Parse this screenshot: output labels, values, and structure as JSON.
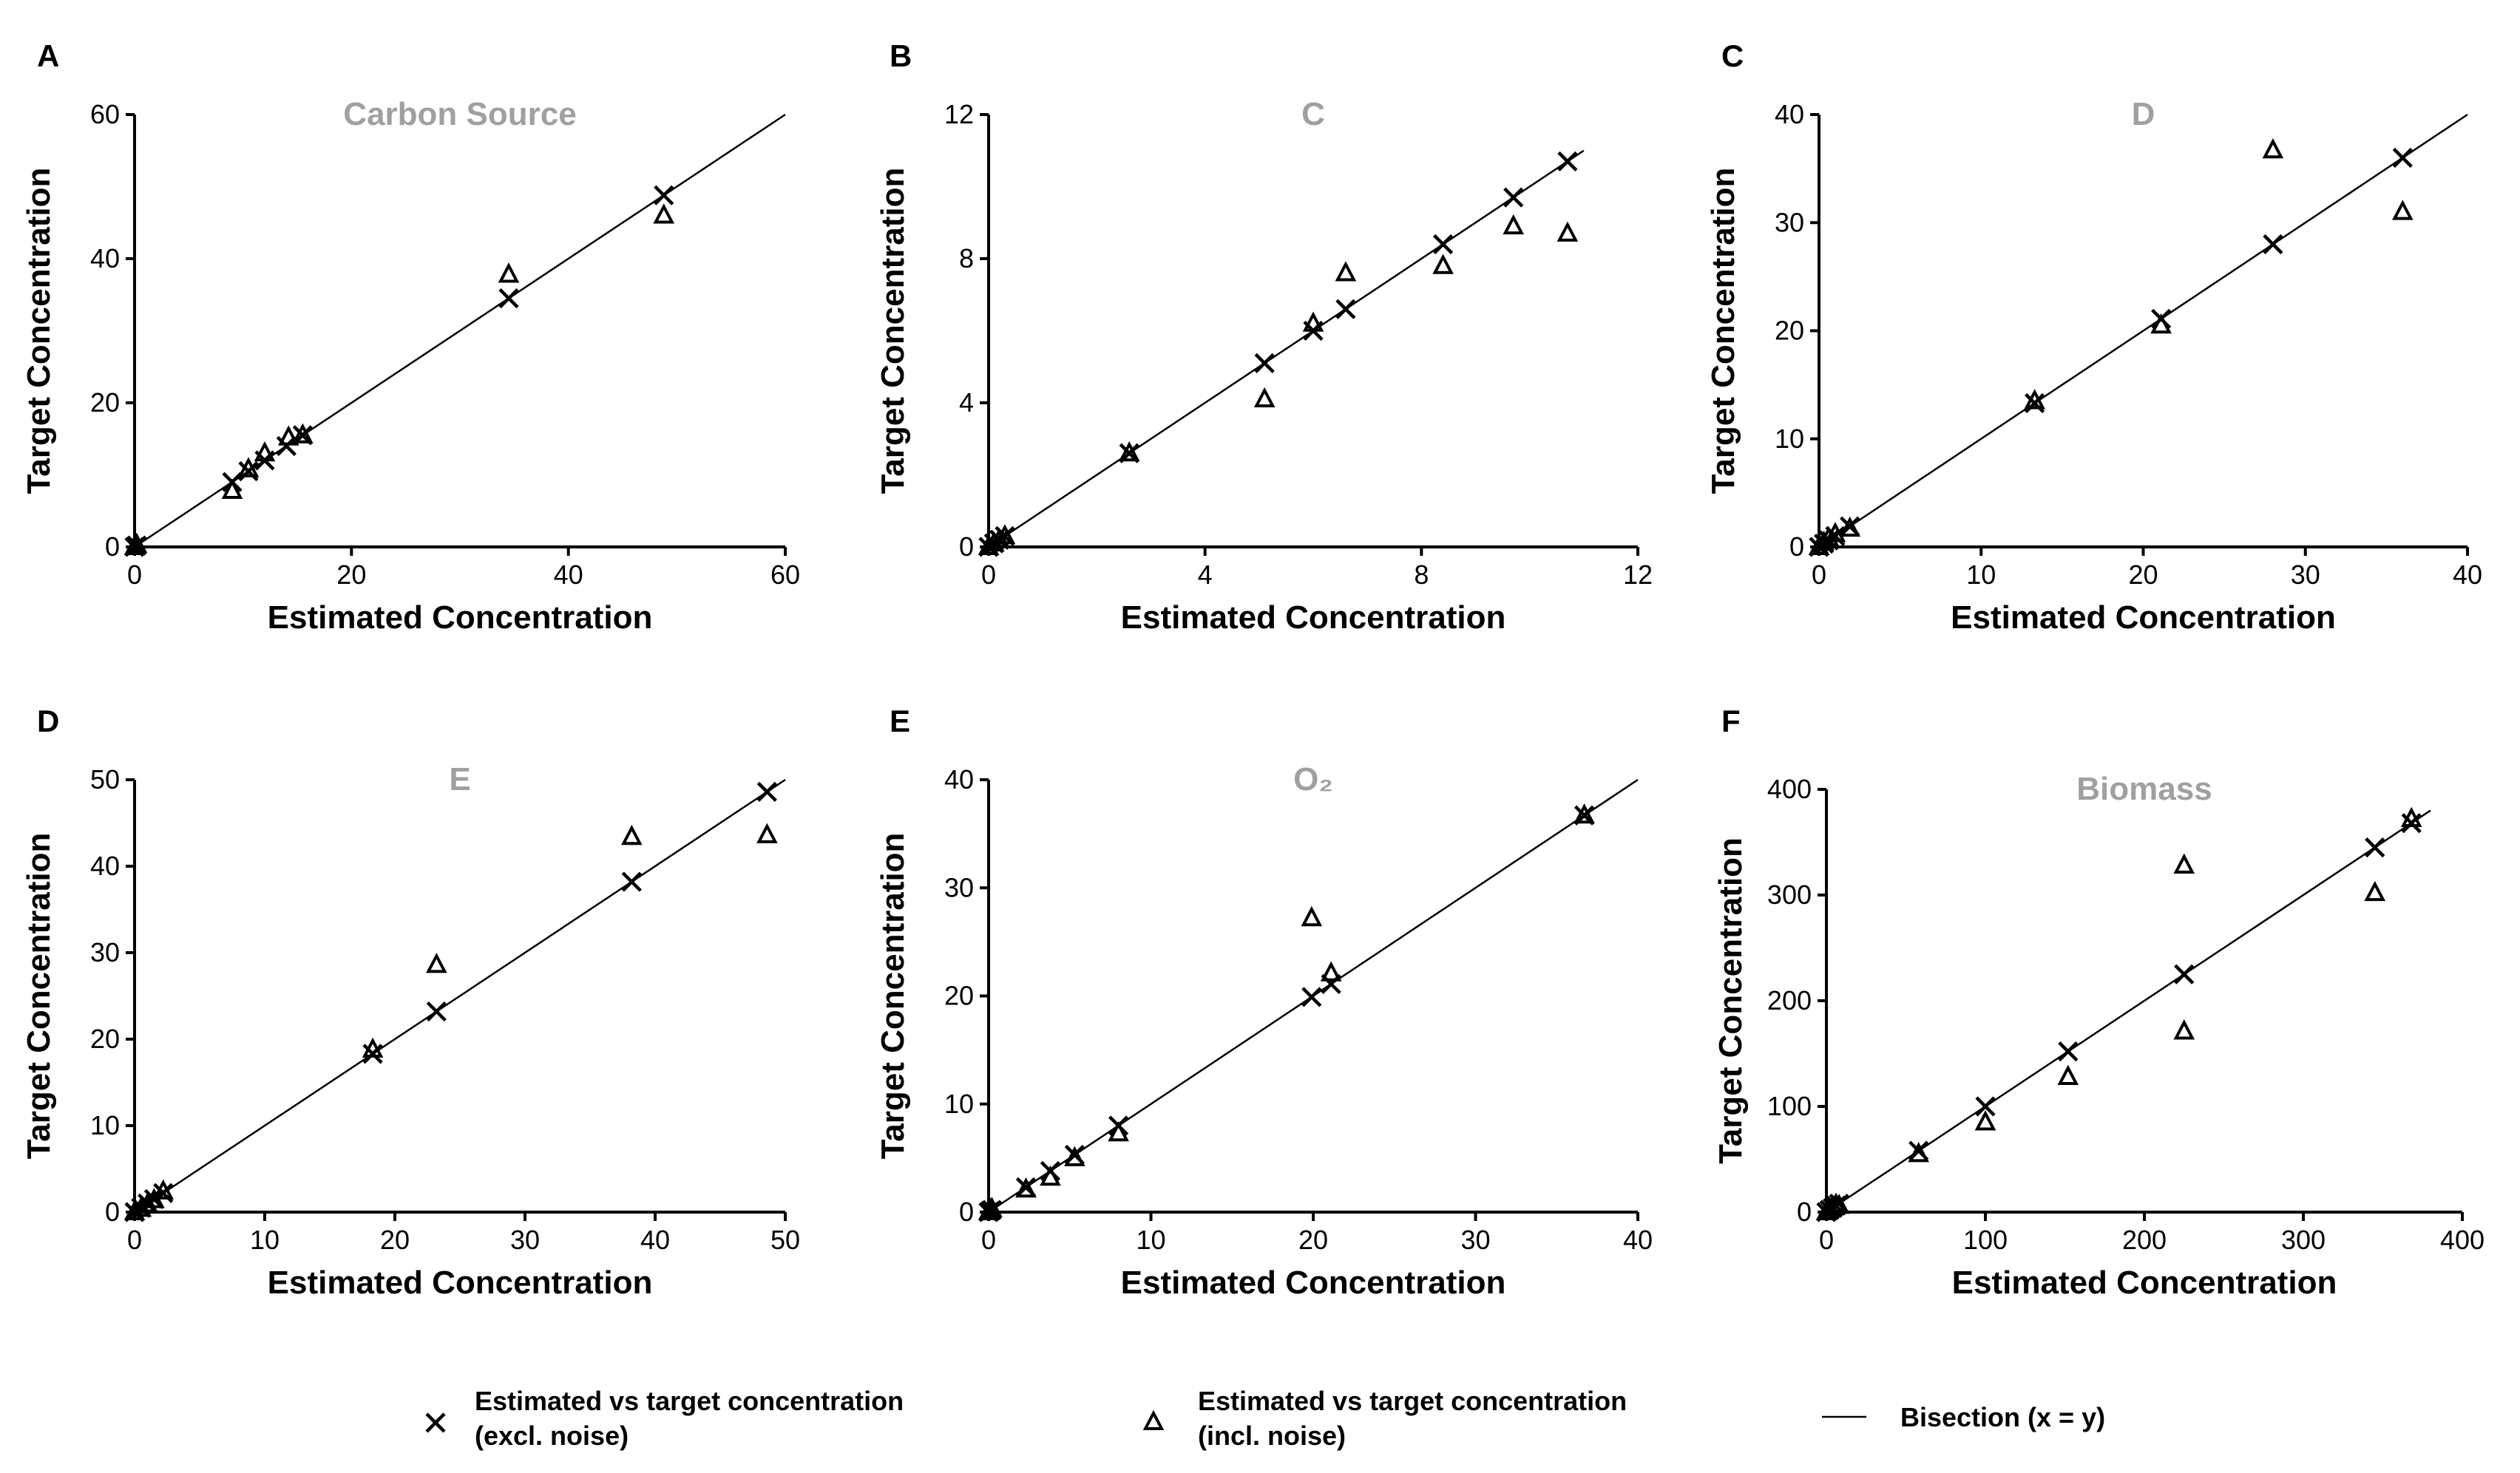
{
  "figure": {
    "legend": {
      "excl_line1": "Estimated vs target concentration",
      "excl_line2": "(excl. noise)",
      "incl_line1": "Estimated vs target concentration",
      "incl_line2": "(incl. noise)",
      "bisection": "Bisection (x = y)"
    }
  },
  "chart_data": [
    {
      "panel": "A",
      "type": "scatter",
      "title": "Carbon  Source",
      "xlabel": "Estimated Concentration",
      "ylabel": "Target Concentration",
      "xlim": [
        0,
        60
      ],
      "ylim": [
        0,
        60
      ],
      "xticks": [
        0,
        20,
        40,
        60
      ],
      "yticks": [
        0,
        20,
        40,
        60
      ],
      "xtick_labels": [
        "0",
        "20",
        "40",
        "60"
      ],
      "ytick_labels": [
        "0",
        "20",
        "40",
        "60"
      ],
      "series": [
        {
          "name": "Estimated vs target concentration (excl. noise)",
          "marker": "x",
          "x": [
            0,
            0.2,
            9,
            10.5,
            12,
            14,
            15.5,
            34.5,
            48.8
          ],
          "y": [
            0,
            0.2,
            9,
            10.5,
            12,
            14,
            15.5,
            34.5,
            48.8
          ]
        },
        {
          "name": "Estimated vs target concentration (incl. noise)",
          "marker": "triangle",
          "x": [
            0,
            0.2,
            9,
            10.5,
            12,
            14.2,
            15.5,
            34.5,
            48.8
          ],
          "y": [
            0,
            0.3,
            7.8,
            10.8,
            13,
            15.2,
            15.5,
            37.8,
            46
          ]
        },
        {
          "name": "Bisection (x = y)",
          "type": "line",
          "x": [
            0,
            60
          ],
          "y": [
            0,
            60
          ]
        }
      ]
    },
    {
      "panel": "B",
      "type": "scatter",
      "title": "C",
      "xlabel": "Estimated Concentration",
      "ylabel": "Target Concentration",
      "xlim": [
        0,
        12
      ],
      "ylim": [
        0,
        12
      ],
      "xticks": [
        0,
        4,
        8,
        12
      ],
      "yticks": [
        0,
        4,
        8,
        12
      ],
      "xtick_labels": [
        "0",
        "4",
        "8",
        "12"
      ],
      "ytick_labels": [
        "0",
        "4",
        "8",
        "12"
      ],
      "series": [
        {
          "name": "Estimated vs target concentration (excl. noise)",
          "marker": "x",
          "x": [
            0,
            0.1,
            0.2,
            0.3,
            2.6,
            5.1,
            6.0,
            6.6,
            8.4,
            9.7,
            10.7
          ],
          "y": [
            0,
            0.1,
            0.2,
            0.3,
            2.6,
            5.1,
            6.0,
            6.6,
            8.4,
            9.7,
            10.7
          ]
        },
        {
          "name": "Estimated vs target concentration (incl. noise)",
          "marker": "triangle",
          "x": [
            0,
            0.1,
            0.2,
            0.3,
            2.6,
            5.1,
            6.0,
            6.6,
            8.4,
            9.7,
            10.7
          ],
          "y": [
            0,
            0.1,
            0.2,
            0.3,
            2.6,
            4.1,
            6.2,
            7.6,
            7.8,
            8.9,
            8.7
          ]
        },
        {
          "name": "Bisection (x = y)",
          "type": "line",
          "x": [
            0,
            11
          ],
          "y": [
            0,
            11
          ]
        }
      ]
    },
    {
      "panel": "C",
      "type": "scatter",
      "title": "D",
      "xlabel": "Estimated Concentration",
      "ylabel": "Target Concentration",
      "xlim": [
        0,
        40
      ],
      "ylim": [
        0,
        40
      ],
      "xticks": [
        0,
        10,
        20,
        30,
        40
      ],
      "yticks": [
        0,
        10,
        20,
        30,
        40
      ],
      "xtick_labels": [
        "0",
        "10",
        "20",
        "30",
        "40"
      ],
      "ytick_labels": [
        "0",
        "10",
        "20",
        "30",
        "40"
      ],
      "series": [
        {
          "name": "Estimated vs target concentration (excl. noise)",
          "marker": "x",
          "x": [
            0,
            0.3,
            0.6,
            1.0,
            1.9,
            13.3,
            21.1,
            28.0,
            36.0
          ],
          "y": [
            0,
            0.3,
            0.6,
            1.0,
            1.9,
            13.3,
            21.1,
            28.0,
            36.0
          ]
        },
        {
          "name": "Estimated vs target concentration (incl. noise)",
          "marker": "triangle",
          "x": [
            0,
            0.3,
            0.6,
            1.0,
            1.9,
            13.3,
            21.1,
            28.0,
            36.0
          ],
          "y": [
            0,
            0.4,
            0.8,
            1.2,
            1.7,
            13.5,
            20.5,
            36.7,
            31.0
          ]
        },
        {
          "name": "Bisection (x = y)",
          "type": "line",
          "x": [
            0,
            40
          ],
          "y": [
            0,
            40
          ]
        }
      ]
    },
    {
      "panel": "D",
      "type": "scatter",
      "title": "E",
      "xlabel": "Estimated Concentration",
      "ylabel": "Target Concentration",
      "xlim": [
        0,
        50
      ],
      "ylim": [
        0,
        50
      ],
      "xticks": [
        0,
        10,
        20,
        30,
        40,
        50
      ],
      "yticks": [
        0,
        10,
        20,
        30,
        40,
        50
      ],
      "xtick_labels": [
        "0",
        "10",
        "20",
        "30",
        "40",
        "50"
      ],
      "ytick_labels": [
        "0",
        "10",
        "20",
        "30",
        "40",
        "50"
      ],
      "series": [
        {
          "name": "Estimated vs target concentration (excl. noise)",
          "marker": "x",
          "x": [
            0,
            0.5,
            1.0,
            1.5,
            2.2,
            18.3,
            23.2,
            38.2,
            48.6
          ],
          "y": [
            0,
            0.5,
            1.0,
            1.5,
            2.2,
            18.3,
            23.2,
            38.2,
            48.6
          ]
        },
        {
          "name": "Estimated vs target concentration (incl. noise)",
          "marker": "triangle",
          "x": [
            0,
            0.5,
            1.0,
            1.5,
            2.2,
            18.3,
            23.2,
            38.2,
            48.6
          ],
          "y": [
            0,
            0.4,
            0.9,
            1.4,
            2.4,
            18.8,
            28.6,
            43.4,
            43.6
          ]
        },
        {
          "name": "Bisection (x = y)",
          "type": "line",
          "x": [
            0,
            50
          ],
          "y": [
            0,
            50
          ]
        }
      ]
    },
    {
      "panel": "E",
      "type": "scatter",
      "title": "O₂",
      "xlabel": "Estimated Concentration",
      "ylabel": "Target Concentration",
      "xlim": [
        0,
        40
      ],
      "ylim": [
        0,
        40
      ],
      "xticks": [
        0,
        10,
        20,
        30,
        40
      ],
      "yticks": [
        0,
        10,
        20,
        30,
        40
      ],
      "xtick_labels": [
        "0",
        "10",
        "20",
        "30",
        "40"
      ],
      "ytick_labels": [
        "0",
        "10",
        "20",
        "30",
        "40"
      ],
      "series": [
        {
          "name": "Estimated vs target concentration (excl. noise)",
          "marker": "x",
          "x": [
            0,
            0.1,
            0.2,
            2.3,
            3.8,
            5.3,
            8.0,
            19.9,
            21.1,
            36.7
          ],
          "y": [
            0,
            0.1,
            0.2,
            2.3,
            3.8,
            5.3,
            8.0,
            19.9,
            21.1,
            36.7
          ]
        },
        {
          "name": "Estimated vs target concentration (incl. noise)",
          "marker": "triangle",
          "x": [
            0,
            0.1,
            0.2,
            2.3,
            3.8,
            5.3,
            8.0,
            19.9,
            21.1,
            36.7
          ],
          "y": [
            0,
            0.2,
            0.3,
            2.1,
            3.2,
            5.0,
            7.3,
            27.2,
            22.1,
            36.7
          ]
        },
        {
          "name": "Bisection (x = y)",
          "type": "line",
          "x": [
            0,
            40
          ],
          "y": [
            0,
            40
          ]
        }
      ]
    },
    {
      "panel": "F",
      "type": "scatter",
      "title": "Biomass",
      "xlabel": "Estimated Concentration",
      "ylabel": "Target Concentration",
      "xlim": [
        0,
        400
      ],
      "ylim": [
        0,
        400
      ],
      "xticks": [
        0,
        100,
        200,
        300,
        400
      ],
      "yticks": [
        0,
        100,
        200,
        300,
        400
      ],
      "xtick_labels": [
        "0",
        "100",
        "200",
        "300",
        "400"
      ],
      "ytick_labels": [
        "0",
        "100",
        "200",
        "300",
        "400"
      ],
      "series": [
        {
          "name": "Estimated vs target concentration (excl. noise)",
          "marker": "x",
          "x": [
            0,
            2,
            4,
            6,
            8,
            58,
            100,
            152,
            225,
            345,
            368
          ],
          "y": [
            0,
            2,
            4,
            6,
            8,
            58,
            100,
            152,
            225,
            345,
            368
          ]
        },
        {
          "name": "Estimated vs target concentration (incl. noise)",
          "marker": "triangle",
          "x": [
            0,
            2,
            4,
            6,
            8,
            58,
            100,
            152,
            225,
            225,
            345,
            368
          ],
          "y": [
            0,
            3,
            5,
            7,
            6,
            55,
            85,
            128,
            328,
            171,
            302,
            372
          ]
        },
        {
          "name": "Bisection (x = y)",
          "type": "line",
          "x": [
            0,
            380
          ],
          "y": [
            0,
            380
          ]
        }
      ]
    }
  ]
}
